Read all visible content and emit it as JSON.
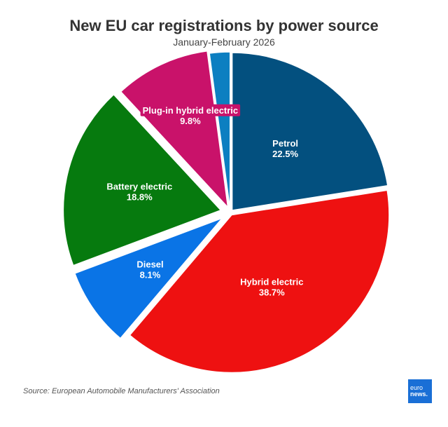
{
  "chart_data": {
    "type": "pie",
    "title": "New EU car registrations by power source",
    "subtitle": "January-February 2026",
    "slices": [
      {
        "label": "Petrol",
        "value": 22.5,
        "display": "22.5%",
        "color": "#03507f"
      },
      {
        "label": "Hybrid electric",
        "value": 38.7,
        "display": "38.7%",
        "color": "#ee1111"
      },
      {
        "label": "Diesel",
        "value": 8.1,
        "display": "8.1%",
        "color": "#0a74e6"
      },
      {
        "label": "Battery electric",
        "value": 18.8,
        "display": "18.8%",
        "color": "#067a0e"
      },
      {
        "label": "Plug-in hybrid electric",
        "value": 9.8,
        "display": "9.8%",
        "color": "#c9126a"
      },
      {
        "label": "",
        "value": 2.1,
        "display": "",
        "color": "#0c7fc1"
      }
    ]
  },
  "footer": {
    "source": "Source: European Automobile Manufacturers' Association"
  },
  "logo": {
    "line1": "euro",
    "line2": "news."
  }
}
